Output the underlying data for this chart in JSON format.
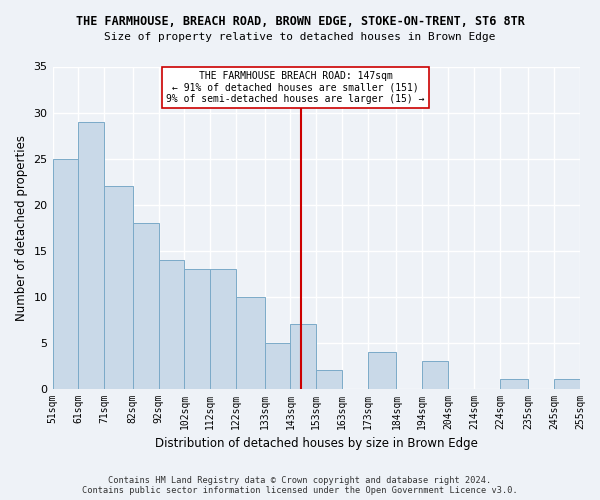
{
  "title": "THE FARMHOUSE, BREACH ROAD, BROWN EDGE, STOKE-ON-TRENT, ST6 8TR",
  "subtitle": "Size of property relative to detached houses in Brown Edge",
  "xlabel": "Distribution of detached houses by size in Brown Edge",
  "ylabel": "Number of detached properties",
  "bar_edges": [
    51,
    61,
    71,
    82,
    92,
    102,
    112,
    122,
    133,
    143,
    153,
    163,
    173,
    184,
    194,
    204,
    214,
    224,
    235,
    245,
    255
  ],
  "bar_heights": [
    25,
    29,
    22,
    18,
    14,
    13,
    13,
    10,
    5,
    7,
    2,
    0,
    4,
    0,
    3,
    0,
    0,
    1,
    0,
    1
  ],
  "bar_color": "#c9d9e8",
  "bar_edgecolor": "#7baac8",
  "vline_x": 147,
  "vline_color": "#cc0000",
  "annotation_text": "THE FARMHOUSE BREACH ROAD: 147sqm\n← 91% of detached houses are smaller (151)\n9% of semi-detached houses are larger (15) →",
  "annotation_box_color": "#ffffff",
  "annotation_box_edgecolor": "#cc0000",
  "ylim": [
    0,
    35
  ],
  "yticks": [
    0,
    5,
    10,
    15,
    20,
    25,
    30,
    35
  ],
  "tick_labels": [
    "51sqm",
    "61sqm",
    "71sqm",
    "82sqm",
    "92sqm",
    "102sqm",
    "112sqm",
    "122sqm",
    "133sqm",
    "143sqm",
    "153sqm",
    "163sqm",
    "173sqm",
    "184sqm",
    "194sqm",
    "204sqm",
    "214sqm",
    "224sqm",
    "235sqm",
    "245sqm",
    "255sqm"
  ],
  "footer": "Contains HM Land Registry data © Crown copyright and database right 2024.\nContains public sector information licensed under the Open Government Licence v3.0.",
  "bg_color": "#eef2f7",
  "grid_color": "#ffffff"
}
